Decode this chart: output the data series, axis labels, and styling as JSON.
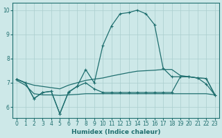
{
  "xlabel": "Humidex (Indice chaleur)",
  "bg_color": "#cde8e8",
  "grid_color": "#aacece",
  "line_color": "#1e6e6e",
  "xlim": [
    -0.5,
    23.5
  ],
  "ylim": [
    5.55,
    10.3
  ],
  "yticks": [
    6,
    7,
    8,
    9,
    10
  ],
  "xticks": [
    0,
    1,
    2,
    3,
    4,
    5,
    6,
    7,
    8,
    9,
    10,
    11,
    12,
    13,
    14,
    15,
    16,
    17,
    18,
    19,
    20,
    21,
    22,
    23
  ],
  "line_peak_x": [
    0,
    1,
    2,
    3,
    4,
    5,
    6,
    7,
    8,
    9,
    10,
    11,
    12,
    13,
    14,
    15,
    16,
    17,
    18,
    19,
    20,
    21,
    22,
    23
  ],
  "line_peak_y": [
    7.15,
    7.0,
    6.35,
    6.6,
    6.65,
    5.72,
    6.6,
    6.85,
    7.55,
    7.0,
    8.55,
    9.35,
    9.85,
    9.9,
    10.0,
    9.85,
    9.4,
    7.6,
    7.25,
    7.25,
    7.25,
    7.2,
    6.95,
    6.5
  ],
  "line_upper_x": [
    0,
    1,
    2,
    3,
    4,
    5,
    6,
    7,
    8,
    9,
    10,
    11,
    12,
    13,
    14,
    15,
    16,
    17,
    18,
    19,
    20,
    21,
    22,
    23
  ],
  "line_upper_y": [
    7.15,
    7.0,
    6.9,
    6.85,
    6.8,
    6.75,
    6.9,
    7.0,
    7.1,
    7.15,
    7.2,
    7.28,
    7.35,
    7.42,
    7.48,
    7.5,
    7.52,
    7.55,
    7.55,
    7.3,
    7.25,
    7.2,
    7.18,
    6.52
  ],
  "line_flat_x": [
    0,
    1,
    2,
    3,
    4,
    5,
    6,
    7,
    8,
    9,
    10,
    11,
    12,
    13,
    14,
    15,
    16,
    17,
    18,
    19,
    20,
    21,
    22,
    23
  ],
  "line_flat_y": [
    7.1,
    6.9,
    6.55,
    6.5,
    6.5,
    6.48,
    6.5,
    6.52,
    6.55,
    6.55,
    6.55,
    6.55,
    6.55,
    6.55,
    6.55,
    6.55,
    6.55,
    6.55,
    6.55,
    6.55,
    6.55,
    6.55,
    6.55,
    6.5
  ],
  "line_zigzag_x": [
    0,
    1,
    2,
    3,
    4,
    5,
    6,
    7,
    8,
    9,
    10,
    11,
    12,
    13,
    14,
    15,
    16,
    17,
    18,
    19,
    20,
    21,
    22,
    23
  ],
  "line_zigzag_y": [
    7.15,
    7.0,
    6.35,
    6.6,
    6.65,
    5.72,
    6.62,
    6.85,
    7.0,
    6.75,
    6.6,
    6.6,
    6.6,
    6.6,
    6.6,
    6.6,
    6.6,
    6.6,
    6.6,
    7.25,
    7.25,
    7.2,
    7.18,
    6.5
  ]
}
